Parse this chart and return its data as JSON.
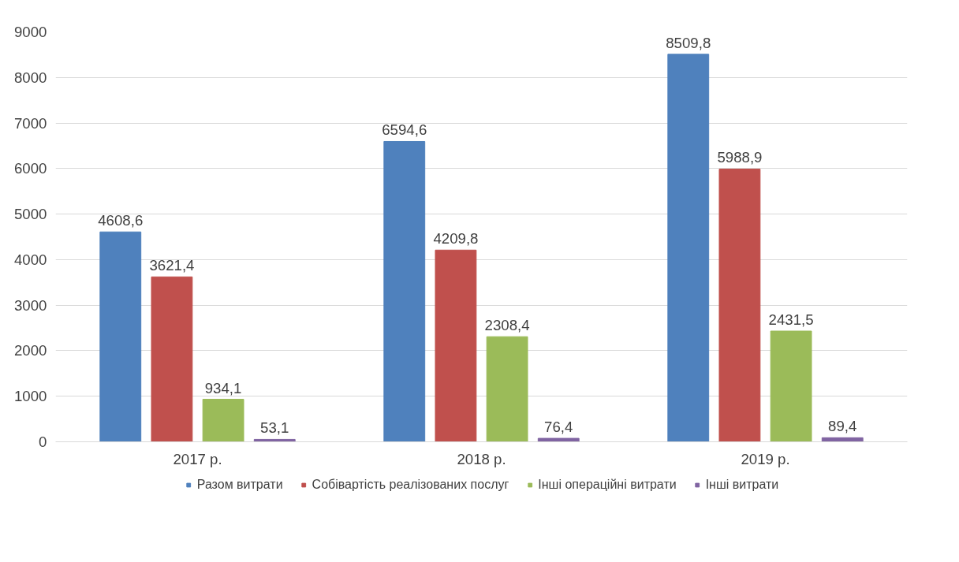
{
  "chart_data": {
    "type": "bar",
    "categories": [
      "2017 р.",
      "2018 р.",
      "2019 р."
    ],
    "series": [
      {
        "name": "Разом витрати",
        "color": "#4f81bd",
        "values": [
          4608.6,
          6594.6,
          8509.8
        ],
        "value_labels": [
          "4608,6",
          "6594,6",
          "8509,8"
        ]
      },
      {
        "name": "Собівартість реалізованих послуг",
        "color": "#c0504d",
        "values": [
          3621.4,
          4209.8,
          5988.9
        ],
        "value_labels": [
          "3621,4",
          "4209,8",
          "5988,9"
        ]
      },
      {
        "name": "Інші операційні витрати",
        "color": "#9bbb59",
        "values": [
          934.1,
          2308.4,
          2431.5
        ],
        "value_labels": [
          "934,1",
          "2308,4",
          "2431,5"
        ]
      },
      {
        "name": "Інші витрати",
        "color": "#8064a2",
        "values": [
          53.1,
          76.4,
          89.4
        ],
        "value_labels": [
          "53,1",
          "76,4",
          "89,4"
        ]
      }
    ],
    "ylim": [
      0,
      9000
    ],
    "yticks": [
      0,
      1000,
      2000,
      3000,
      4000,
      5000,
      6000,
      7000,
      8000,
      9000
    ],
    "grid": "y",
    "legend": "bottom"
  }
}
